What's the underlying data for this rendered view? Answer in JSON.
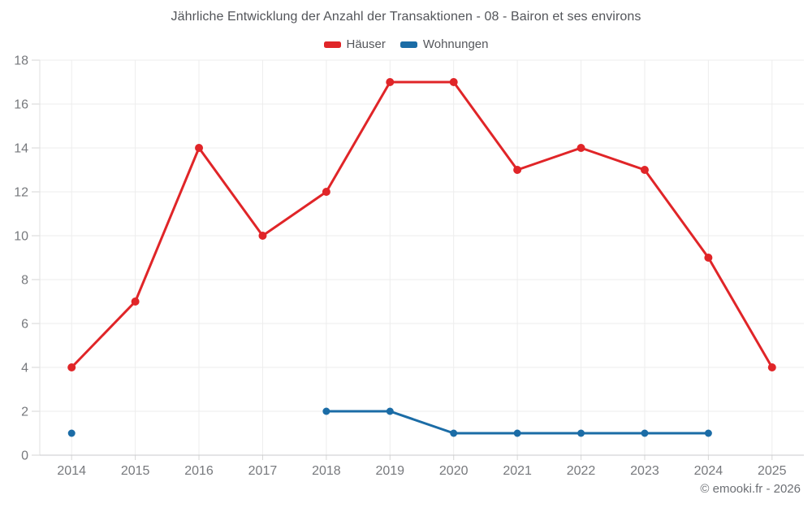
{
  "chart": {
    "title": "Jährliche Entwicklung der Anzahl der Transaktionen - 08 - Bairon et ses environs"
  },
  "footer": {
    "copyright": "© emooki.fr - 2026"
  },
  "colors": {
    "haeuser_red": "#e02528",
    "wohnungen_blue": "#1b6ca6",
    "gridline": "#ededed",
    "tick": "#d6d6d6",
    "axis_bottom": "#c9cacc",
    "axis_left": "#e2e2e2",
    "tick_label": "#77797d",
    "title_text": "#53555a"
  },
  "chart_data": {
    "type": "line",
    "title": "Jährliche Entwicklung der Anzahl der Transaktionen - 08 - Bairon et ses environs",
    "categories": [
      "2014",
      "2015",
      "2016",
      "2017",
      "2018",
      "2019",
      "2020",
      "2021",
      "2022",
      "2023",
      "2024",
      "2025"
    ],
    "series": [
      {
        "name": "Häuser",
        "color": "#e02528",
        "values": [
          4,
          7,
          14,
          10,
          12,
          17,
          17,
          13,
          14,
          13,
          9,
          4
        ]
      },
      {
        "name": "Wohnungen",
        "color": "#1b6ca6",
        "values": [
          1,
          null,
          null,
          null,
          2,
          2,
          1,
          1,
          1,
          1,
          1,
          null
        ]
      }
    ],
    "xlabel": "",
    "ylabel": "",
    "ylim": [
      0,
      18
    ],
    "ytick_step": 2,
    "yticks": [
      0,
      2,
      4,
      6,
      8,
      10,
      12,
      14,
      16,
      18
    ],
    "grid": true,
    "legend_position": "top",
    "annotation": "© emooki.fr - 2026"
  }
}
